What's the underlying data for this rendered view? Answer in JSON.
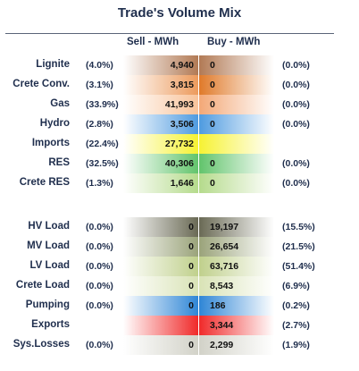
{
  "title": "Trade's Volume Mix",
  "col_sell": "Sell - MWh",
  "col_buy": "Buy - MWh",
  "chart_data": {
    "type": "table",
    "title": "Trade's Volume Mix",
    "columns": [
      "",
      "",
      "Sell - MWh",
      "Buy - MWh",
      ""
    ],
    "rows": [
      {
        "label": "Lignite",
        "sell_pct": "(4.0%)",
        "sell": "4,940",
        "buy": "0",
        "buy_pct": "(0.0%)",
        "sell_color": "#b27a55",
        "buy_color": "#b27a55"
      },
      {
        "label": "Crete Conv.",
        "sell_pct": "(3.1%)",
        "sell": "3,815",
        "buy": "0",
        "buy_pct": "(0.0%)",
        "sell_color": "#ec9a5c",
        "buy_color": "#e07a2a"
      },
      {
        "label": "Gas",
        "sell_pct": "(33.9%)",
        "sell": "41,993",
        "buy": "0",
        "buy_pct": "(0.0%)",
        "sell_color": "#f8c39a",
        "buy_color": "#f3a877"
      },
      {
        "label": "Hydro",
        "sell_pct": "(2.8%)",
        "sell": "3,506",
        "buy": "0",
        "buy_pct": "(0.0%)",
        "sell_color": "#4f9be0",
        "buy_color": "#4f9be0"
      },
      {
        "label": "Imports",
        "sell_pct": "(22.4%)",
        "sell": "27,732",
        "buy": "",
        "buy_pct": "",
        "sell_color": "#f6f233",
        "buy_color": "#f6f233"
      },
      {
        "label": "RES",
        "sell_pct": "(32.5%)",
        "sell": "40,306",
        "buy": "0",
        "buy_pct": "(0.0%)",
        "sell_color": "#62c46c",
        "buy_color": "#62c46c"
      },
      {
        "label": "Crete RES",
        "sell_pct": "(1.3%)",
        "sell": "1,646",
        "buy": "0",
        "buy_pct": "(0.0%)",
        "sell_color": "#b5db8c",
        "buy_color": "#b5db8c"
      },
      {
        "label": "HV Load",
        "sell_pct": "(0.0%)",
        "sell": "0",
        "buy": "19,197",
        "buy_pct": "(15.5%)",
        "sell_color": "#6a6a55",
        "buy_color": "#6a6a55"
      },
      {
        "label": "MV Load",
        "sell_pct": "(0.0%)",
        "sell": "0",
        "buy": "26,654",
        "buy_pct": "(21.5%)",
        "sell_color": "#9aa37a",
        "buy_color": "#9aa37a"
      },
      {
        "label": "LV Load",
        "sell_pct": "(0.0%)",
        "sell": "0",
        "buy": "63,716",
        "buy_pct": "(51.4%)",
        "sell_color": "#c0d08c",
        "buy_color": "#c0d08c"
      },
      {
        "label": "Crete Load",
        "sell_pct": "(0.0%)",
        "sell": "0",
        "buy": "8,543",
        "buy_pct": "(6.9%)",
        "sell_color": "#d9e3b6",
        "buy_color": "#d9e3b6"
      },
      {
        "label": "Pumping",
        "sell_pct": "(0.0%)",
        "sell": "0",
        "buy": "186",
        "buy_pct": "(0.2%)",
        "sell_color": "#2f86d6",
        "buy_color": "#2f86d6"
      },
      {
        "label": "Exports",
        "sell_pct": "",
        "sell": "",
        "buy": "3,344",
        "buy_pct": "(2.7%)",
        "sell_color": "#f02a2a",
        "buy_color": "#f02a2a"
      },
      {
        "label": "Sys.Losses",
        "sell_pct": "(0.0%)",
        "sell": "0",
        "buy": "2,299",
        "buy_pct": "(1.9%)",
        "sell_color": "#d2d2c8",
        "buy_color": "#d2d2c8"
      }
    ]
  }
}
